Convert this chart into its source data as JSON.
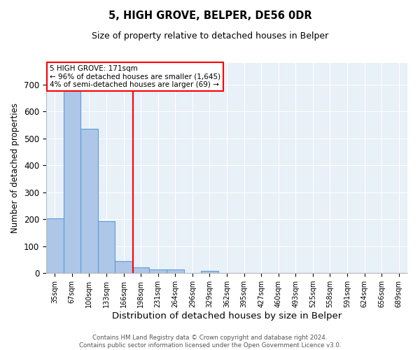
{
  "title1": "5, HIGH GROVE, BELPER, DE56 0DR",
  "title2": "Size of property relative to detached houses in Belper",
  "xlabel": "Distribution of detached houses by size in Belper",
  "ylabel": "Number of detached properties",
  "bin_labels": [
    "35sqm",
    "67sqm",
    "100sqm",
    "133sqm",
    "166sqm",
    "198sqm",
    "231sqm",
    "264sqm",
    "296sqm",
    "329sqm",
    "362sqm",
    "395sqm",
    "427sqm",
    "460sqm",
    "493sqm",
    "525sqm",
    "558sqm",
    "591sqm",
    "624sqm",
    "656sqm",
    "689sqm"
  ],
  "bar_values": [
    202,
    714,
    536,
    192,
    44,
    20,
    14,
    12,
    0,
    8,
    0,
    0,
    0,
    0,
    0,
    0,
    0,
    0,
    0,
    0,
    0
  ],
  "bar_color": "#aec6e8",
  "bar_edge_color": "#5a9fd4",
  "property_line_x": 4.54,
  "property_line_color": "red",
  "annotation_text": "5 HIGH GROVE: 171sqm\n← 96% of detached houses are smaller (1,645)\n4% of semi-detached houses are larger (69) →",
  "annotation_box_color": "white",
  "annotation_box_edge_color": "red",
  "background_color": "#e8f0f8",
  "footnote": "Contains HM Land Registry data © Crown copyright and database right 2024.\nContains public sector information licensed under the Open Government Licence v3.0.",
  "ylim": [
    0,
    780
  ],
  "yticks": [
    0,
    100,
    200,
    300,
    400,
    500,
    600,
    700
  ]
}
